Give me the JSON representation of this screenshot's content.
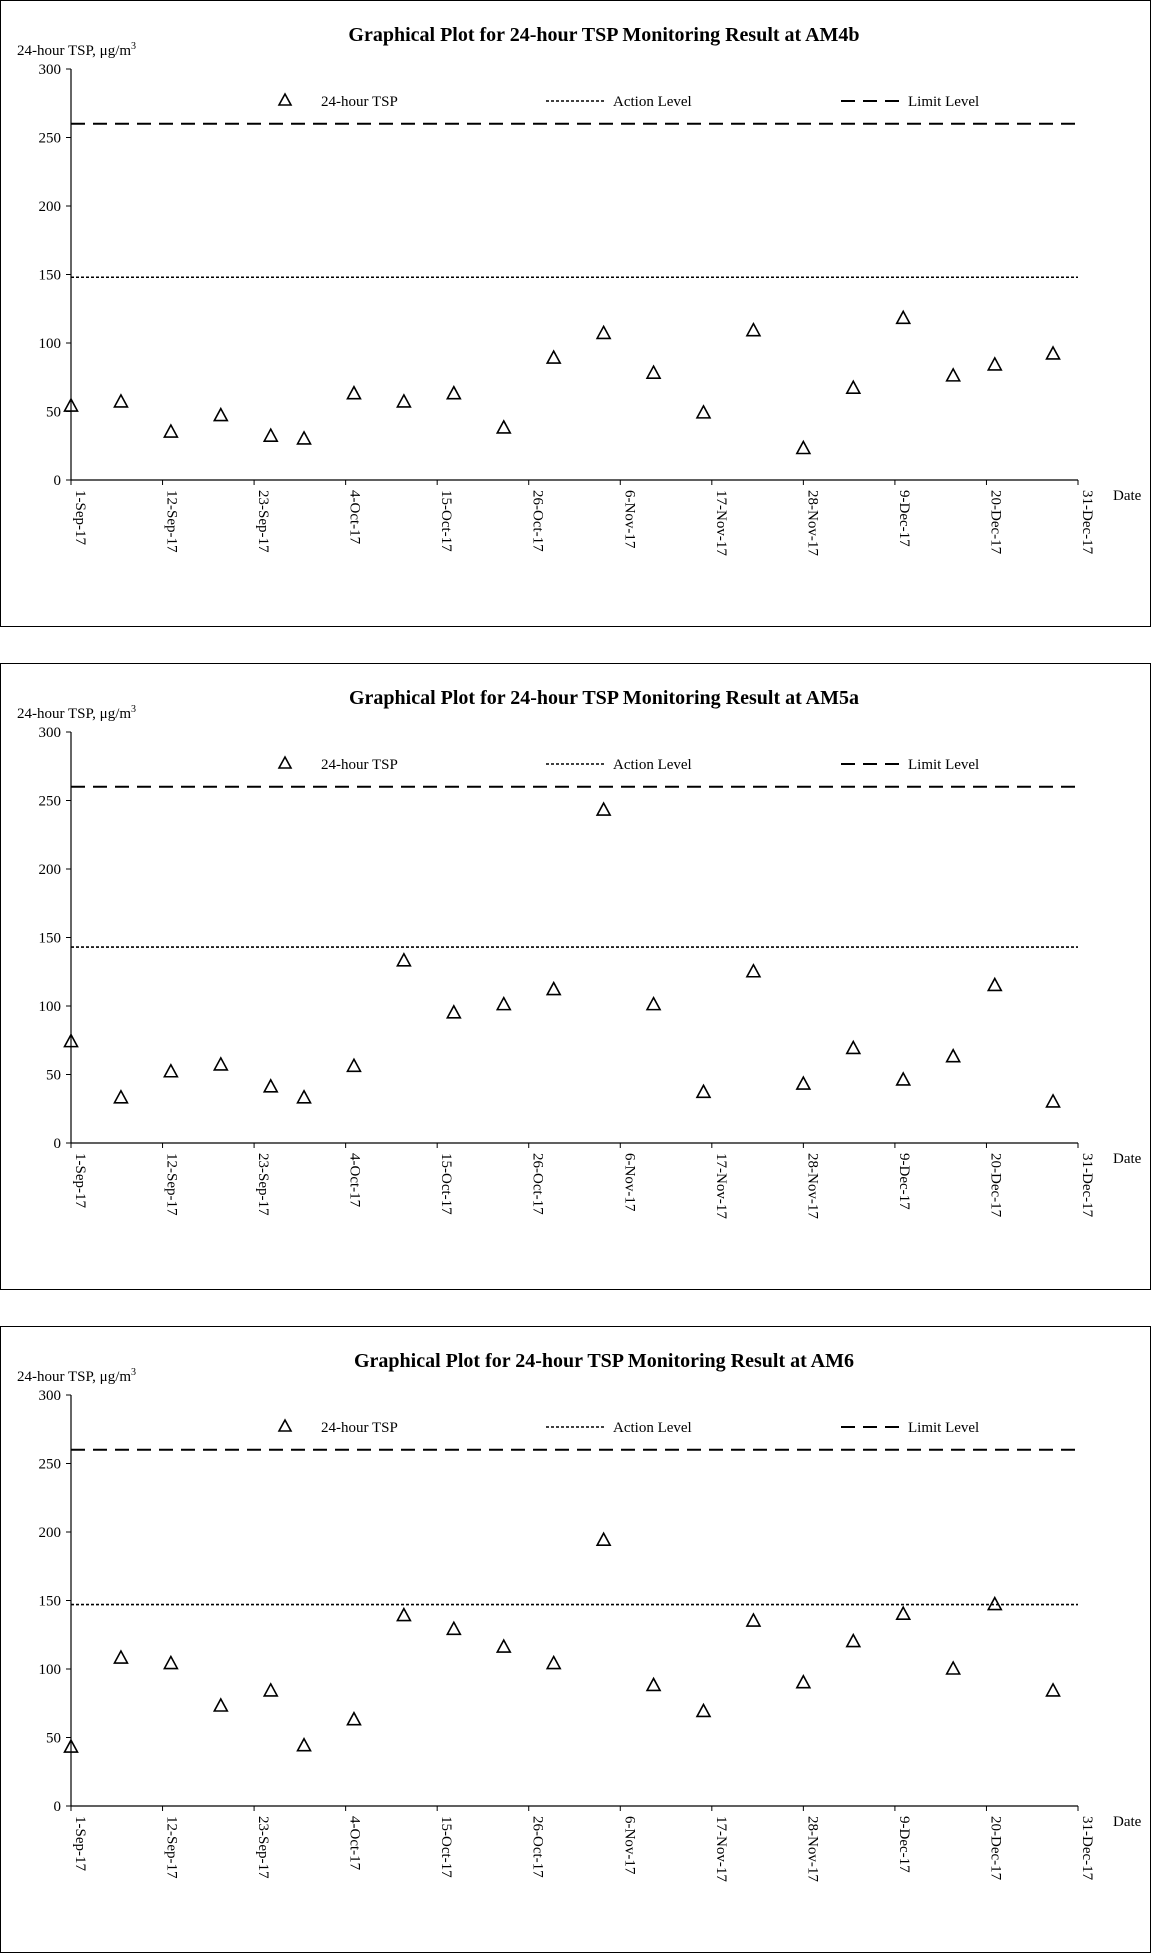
{
  "chart_data": [
    {
      "type": "scatter",
      "title": "Graphical Plot for 24-hour TSP Monitoring Result at AM4b",
      "ylabel": "24-hour TSP, μg/m",
      "ylabel_superscript": "3",
      "xlabel": "Date",
      "ylim": [
        0,
        300
      ],
      "y_ticks": [
        "0",
        "50",
        "100",
        "150",
        "200",
        "250",
        "300"
      ],
      "xlim": [
        "2017-09-01",
        "2017-12-31"
      ],
      "x_ticks": [
        "1-Sep-17",
        "12-Sep-17",
        "23-Sep-17",
        "4-Oct-17",
        "15-Oct-17",
        "26-Oct-17",
        "6-Nov-17",
        "17-Nov-17",
        "28-Nov-17",
        "9-Dec-17",
        "20-Dec-17",
        "31-Dec-17"
      ],
      "legend": [
        "24-hour TSP",
        "Action Level",
        "Limit Level"
      ],
      "legend_position": "top",
      "grid": false,
      "action_level": 148,
      "limit_level": 260,
      "series": [
        {
          "name": "24-hour TSP",
          "x": [
            "2017-09-01",
            "2017-09-07",
            "2017-09-13",
            "2017-09-19",
            "2017-09-25",
            "2017-09-29",
            "2017-10-05",
            "2017-10-11",
            "2017-10-17",
            "2017-10-23",
            "2017-10-29",
            "2017-11-04",
            "2017-11-10",
            "2017-11-16",
            "2017-11-22",
            "2017-11-28",
            "2017-12-04",
            "2017-12-10",
            "2017-12-16",
            "2017-12-21",
            "2017-12-28"
          ],
          "y": [
            54,
            57,
            35,
            47,
            32,
            30,
            63,
            57,
            63,
            38,
            89,
            107,
            78,
            49,
            109,
            23,
            67,
            118,
            76,
            84,
            92
          ]
        }
      ]
    },
    {
      "type": "scatter",
      "title": "Graphical Plot for 24-hour TSP Monitoring Result at AM5a",
      "ylabel": "24-hour TSP, μg/m",
      "ylabel_superscript": "3",
      "xlabel": "Date",
      "ylim": [
        0,
        300
      ],
      "y_ticks": [
        "0",
        "50",
        "100",
        "150",
        "200",
        "250",
        "300"
      ],
      "xlim": [
        "2017-09-01",
        "2017-12-31"
      ],
      "x_ticks": [
        "1-Sep-17",
        "12-Sep-17",
        "23-Sep-17",
        "4-Oct-17",
        "15-Oct-17",
        "26-Oct-17",
        "6-Nov-17",
        "17-Nov-17",
        "28-Nov-17",
        "9-Dec-17",
        "20-Dec-17",
        "31-Dec-17"
      ],
      "legend": [
        "24-hour TSP",
        "Action Level",
        "Limit Level"
      ],
      "legend_position": "top",
      "grid": false,
      "action_level": 143,
      "limit_level": 260,
      "series": [
        {
          "name": "24-hour TSP",
          "x": [
            "2017-09-01",
            "2017-09-07",
            "2017-09-13",
            "2017-09-19",
            "2017-09-25",
            "2017-09-29",
            "2017-10-05",
            "2017-10-11",
            "2017-10-17",
            "2017-10-23",
            "2017-10-29",
            "2017-11-04",
            "2017-11-10",
            "2017-11-16",
            "2017-11-22",
            "2017-11-28",
            "2017-12-04",
            "2017-12-10",
            "2017-12-16",
            "2017-12-21",
            "2017-12-28"
          ],
          "y": [
            74,
            33,
            52,
            57,
            41,
            33,
            56,
            133,
            95,
            101,
            112,
            243,
            101,
            37,
            125,
            43,
            69,
            46,
            63,
            115,
            30
          ]
        }
      ]
    },
    {
      "type": "scatter",
      "title": "Graphical Plot for 24-hour TSP Monitoring Result at AM6",
      "ylabel": "24-hour TSP, μg/m",
      "ylabel_superscript": "3",
      "xlabel": "Date",
      "ylim": [
        0,
        300
      ],
      "y_ticks": [
        "0",
        "50",
        "100",
        "150",
        "200",
        "250",
        "300"
      ],
      "xlim": [
        "2017-09-01",
        "2017-12-31"
      ],
      "x_ticks": [
        "1-Sep-17",
        "12-Sep-17",
        "23-Sep-17",
        "4-Oct-17",
        "15-Oct-17",
        "26-Oct-17",
        "6-Nov-17",
        "17-Nov-17",
        "28-Nov-17",
        "9-Dec-17",
        "20-Dec-17",
        "31-Dec-17"
      ],
      "legend": [
        "24-hour TSP",
        "Action Level",
        "Limit Level"
      ],
      "legend_position": "top",
      "grid": false,
      "action_level": 147,
      "limit_level": 260,
      "series": [
        {
          "name": "24-hour TSP",
          "x": [
            "2017-09-01",
            "2017-09-07",
            "2017-09-13",
            "2017-09-19",
            "2017-09-25",
            "2017-09-29",
            "2017-10-05",
            "2017-10-11",
            "2017-10-17",
            "2017-10-23",
            "2017-10-29",
            "2017-11-04",
            "2017-11-10",
            "2017-11-16",
            "2017-11-22",
            "2017-11-28",
            "2017-12-04",
            "2017-12-10",
            "2017-12-16",
            "2017-12-21",
            "2017-12-28"
          ],
          "y": [
            43,
            108,
            104,
            73,
            84,
            44,
            63,
            139,
            129,
            116,
            104,
            194,
            88,
            69,
            135,
            90,
            120,
            140,
            100,
            147,
            84
          ]
        }
      ]
    }
  ]
}
